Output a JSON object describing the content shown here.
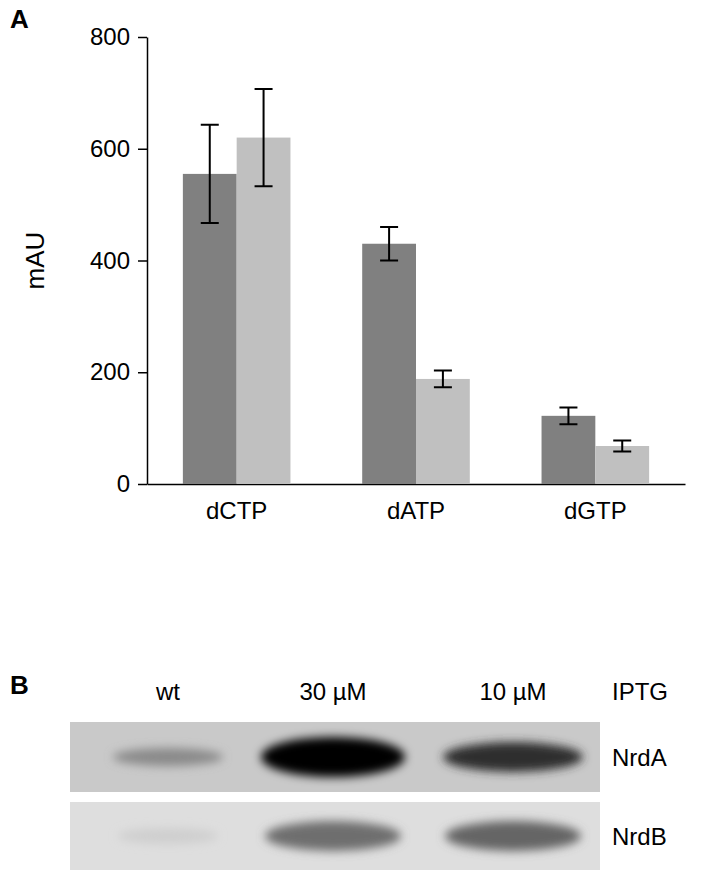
{
  "chart_data": {
    "type": "bar",
    "y_label": "mAU",
    "categories": [
      "dCTP",
      "dATP",
      "dGTP"
    ],
    "series": [
      {
        "color": "#808080",
        "values": [
          555,
          430,
          122
        ],
        "errors": [
          88,
          30,
          15
        ]
      },
      {
        "color": "#c0c0c0",
        "values": [
          620,
          188,
          68
        ],
        "errors": [
          87,
          15,
          10
        ]
      }
    ],
    "ylim": [
      0,
      800
    ],
    "yticks": [
      0,
      200,
      400,
      600,
      800
    ],
    "grid": false
  },
  "panel_labels": [
    "A",
    "B"
  ],
  "blot": {
    "lanes": [
      "wt",
      "30 µM",
      "10 µM"
    ],
    "lanes_title": "IPTG",
    "rows": [
      "NrdA",
      "NrdB"
    ]
  }
}
